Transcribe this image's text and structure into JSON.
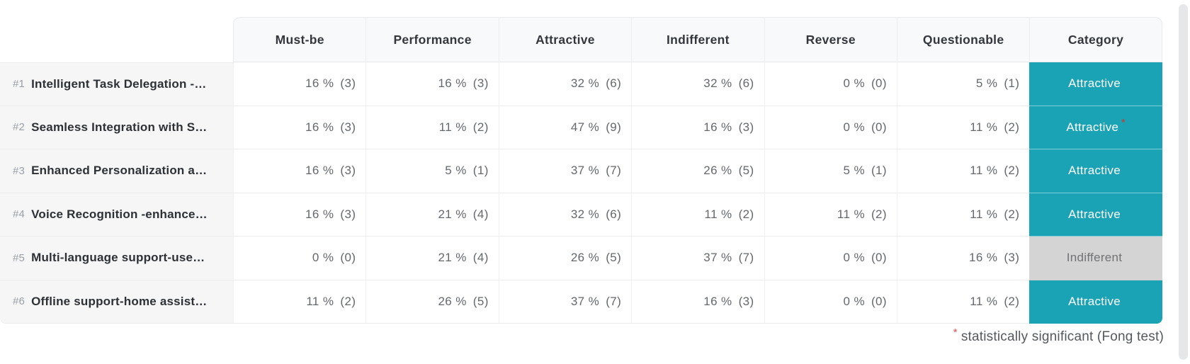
{
  "table": {
    "columns": [
      "Must-be",
      "Performance",
      "Attractive",
      "Indifferent",
      "Reverse",
      "Questionable",
      "Category"
    ],
    "rows": [
      {
        "id": "#1",
        "name": "Intelligent Task Delegation -…",
        "values": [
          {
            "pct": "16 %",
            "count": "(3)"
          },
          {
            "pct": "16 %",
            "count": "(3)"
          },
          {
            "pct": "32 %",
            "count": "(6)"
          },
          {
            "pct": "32 %",
            "count": "(6)"
          },
          {
            "pct": "0 %",
            "count": "(0)"
          },
          {
            "pct": "5 %",
            "count": "(1)"
          }
        ],
        "category": {
          "label": "Attractive",
          "type": "attractive",
          "sig_marker": ""
        }
      },
      {
        "id": "#2",
        "name": "Seamless Integration with S…",
        "values": [
          {
            "pct": "16 %",
            "count": "(3)"
          },
          {
            "pct": "11 %",
            "count": "(2)"
          },
          {
            "pct": "47 %",
            "count": "(9)"
          },
          {
            "pct": "16 %",
            "count": "(3)"
          },
          {
            "pct": "0 %",
            "count": "(0)"
          },
          {
            "pct": "11 %",
            "count": "(2)"
          }
        ],
        "category": {
          "label": "Attractive",
          "type": "attractive",
          "sig_marker": "*"
        }
      },
      {
        "id": "#3",
        "name": "Enhanced Personalization a…",
        "values": [
          {
            "pct": "16 %",
            "count": "(3)"
          },
          {
            "pct": "5 %",
            "count": "(1)"
          },
          {
            "pct": "37 %",
            "count": "(7)"
          },
          {
            "pct": "26 %",
            "count": "(5)"
          },
          {
            "pct": "5 %",
            "count": "(1)"
          },
          {
            "pct": "11 %",
            "count": "(2)"
          }
        ],
        "category": {
          "label": "Attractive",
          "type": "attractive",
          "sig_marker": ""
        }
      },
      {
        "id": "#4",
        "name": "Voice Recognition -enhance…",
        "values": [
          {
            "pct": "16 %",
            "count": "(3)"
          },
          {
            "pct": "21 %",
            "count": "(4)"
          },
          {
            "pct": "32 %",
            "count": "(6)"
          },
          {
            "pct": "11 %",
            "count": "(2)"
          },
          {
            "pct": "11 %",
            "count": "(2)"
          },
          {
            "pct": "11 %",
            "count": "(2)"
          }
        ],
        "category": {
          "label": "Attractive",
          "type": "attractive",
          "sig_marker": ""
        }
      },
      {
        "id": "#5",
        "name": "Multi-language support-use…",
        "values": [
          {
            "pct": "0 %",
            "count": "(0)"
          },
          {
            "pct": "21 %",
            "count": "(4)"
          },
          {
            "pct": "26 %",
            "count": "(5)"
          },
          {
            "pct": "37 %",
            "count": "(7)"
          },
          {
            "pct": "0 %",
            "count": "(0)"
          },
          {
            "pct": "16 %",
            "count": "(3)"
          }
        ],
        "category": {
          "label": "Indifferent",
          "type": "indifferent",
          "sig_marker": ""
        }
      },
      {
        "id": "#6",
        "name": "Offline support-home assist…",
        "values": [
          {
            "pct": "11 %",
            "count": "(2)"
          },
          {
            "pct": "26 %",
            "count": "(5)"
          },
          {
            "pct": "37 %",
            "count": "(7)"
          },
          {
            "pct": "16 %",
            "count": "(3)"
          },
          {
            "pct": "0 %",
            "count": "(0)"
          },
          {
            "pct": "11 %",
            "count": "(2)"
          }
        ],
        "category": {
          "label": "Attractive",
          "type": "attractive",
          "sig_marker": ""
        }
      }
    ]
  },
  "footnote": {
    "marker": "*",
    "text": "statistically significant (Fong test)"
  },
  "colors": {
    "attractive_bg": "#1aa2b5",
    "indifferent_bg": "#d4d4d4",
    "significant_red": "#e0524e",
    "significant_on_teal": "#b5473d"
  }
}
